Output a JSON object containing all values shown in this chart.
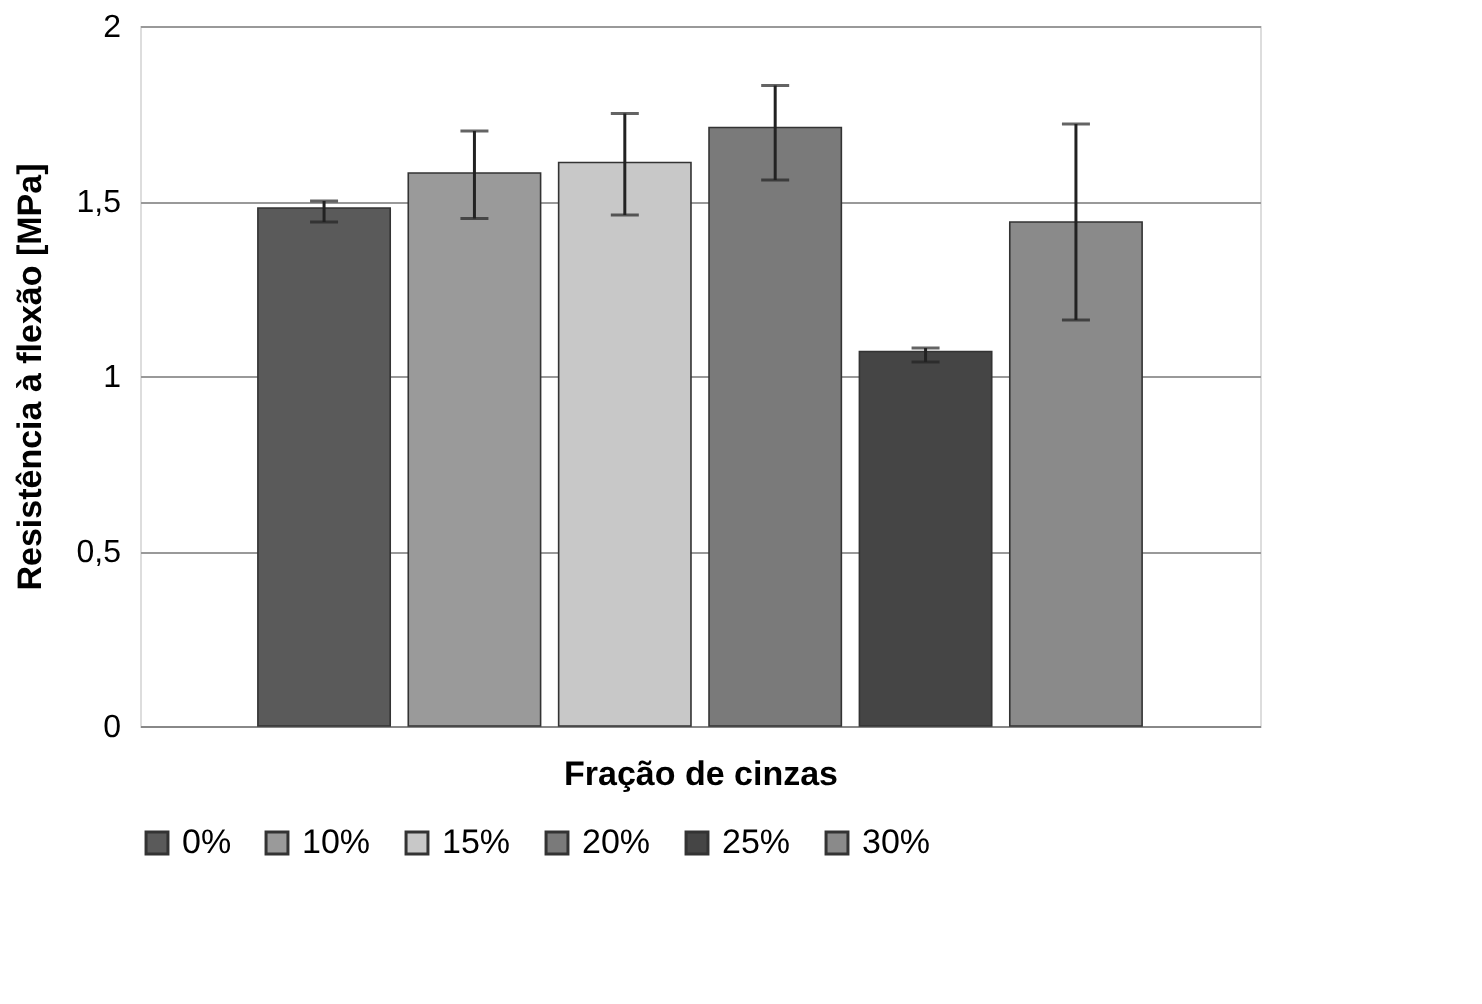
{
  "chart_data": {
    "type": "bar",
    "xlabel": "Fração de cinzas",
    "ylabel": "Resistência à flexão [MPa]",
    "categories": [
      null
    ],
    "series": [
      {
        "name": "0%",
        "color": "#5a5a5a",
        "values": [
          1.48
        ],
        "errors": [
          [
            1.44,
            1.5
          ]
        ]
      },
      {
        "name": "10%",
        "color": "#9a9a9a",
        "values": [
          1.58
        ],
        "errors": [
          [
            1.45,
            1.7
          ]
        ]
      },
      {
        "name": "15%",
        "color": "#c8c8c8",
        "values": [
          1.61
        ],
        "errors": [
          [
            1.46,
            1.75
          ]
        ]
      },
      {
        "name": "20%",
        "color": "#7a7a7a",
        "values": [
          1.71
        ],
        "errors": [
          [
            1.56,
            1.83
          ]
        ]
      },
      {
        "name": "25%",
        "color": "#454545",
        "values": [
          1.07
        ],
        "errors": [
          [
            1.04,
            1.08
          ]
        ]
      },
      {
        "name": "30%",
        "color": "#8a8a8a",
        "values": [
          1.44
        ],
        "errors": [
          [
            1.16,
            1.72
          ]
        ]
      }
    ],
    "ylim": [
      0,
      2
    ],
    "yticks": [
      0,
      {
        "value": 0.5,
        "label": "0,5"
      },
      1,
      {
        "value": 1.5,
        "label": "1,5"
      },
      2
    ],
    "grid": "y",
    "legend": "bottom"
  }
}
